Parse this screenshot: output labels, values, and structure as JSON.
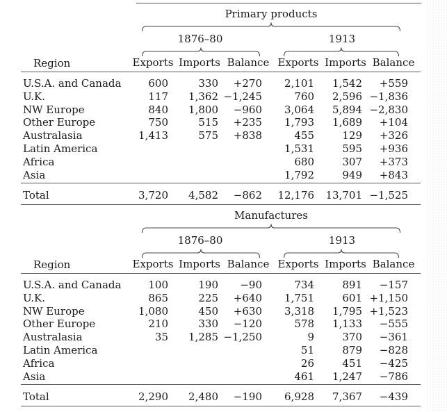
{
  "sections": [
    {
      "title": "Primary products",
      "period1": "1876–80",
      "period2": "1913",
      "region_label": "Region",
      "columns": [
        "Exports",
        "Imports",
        "Balance",
        "Exports",
        "Imports",
        "Balance"
      ],
      "rows": [
        {
          "region": "U.S.A. and Canada",
          "cells": [
            "600",
            "330",
            "+270",
            "2,101",
            "1,542",
            "+559"
          ]
        },
        {
          "region": "U.K.",
          "cells": [
            "117",
            "1,362",
            "−1,245",
            "760",
            "2,596",
            "−1,836"
          ]
        },
        {
          "region": "NW Europe",
          "cells": [
            "840",
            "1,800",
            "−960",
            "3,064",
            "5,894",
            "−2,830"
          ]
        },
        {
          "region": "Other Europe",
          "cells": [
            "750",
            "515",
            "+235",
            "1,793",
            "1,689",
            "+104"
          ]
        },
        {
          "region": "Australasia",
          "cells": [
            "1,413",
            "575",
            "+838",
            "455",
            "129",
            "+326"
          ]
        },
        {
          "region": "Latin America",
          "cells": [
            "",
            "",
            "",
            "1,531",
            "595",
            "+936"
          ]
        },
        {
          "region": "Africa",
          "cells": [
            "",
            "",
            "",
            "680",
            "307",
            "+373"
          ]
        },
        {
          "region": "Asia",
          "cells": [
            "",
            "",
            "",
            "1,792",
            "949",
            "+843"
          ]
        }
      ],
      "total": {
        "region": "Total",
        "cells": [
          "3,720",
          "4,582",
          "−862",
          "12,176",
          "13,701",
          "−1,525"
        ]
      }
    },
    {
      "title": "Manufactures",
      "period1": "1876–80",
      "period2": "1913",
      "region_label": "Region",
      "columns": [
        "Exports",
        "Imports",
        "Balance",
        "Exports",
        "Imports",
        "Balance"
      ],
      "rows": [
        {
          "region": "U.S.A. and Canada",
          "cells": [
            "100",
            "190",
            "−90",
            "734",
            "891",
            "−157"
          ]
        },
        {
          "region": "U.K.",
          "cells": [
            "865",
            "225",
            "+640",
            "1,751",
            "601",
            "+1,150"
          ]
        },
        {
          "region": "NW Europe",
          "cells": [
            "1,080",
            "450",
            "+630",
            "3,318",
            "1,795",
            "+1,523"
          ]
        },
        {
          "region": "Other Europe",
          "cells": [
            "210",
            "330",
            "−120",
            "578",
            "1,133",
            "−555"
          ]
        },
        {
          "region": "Australasia",
          "cells": [
            "35",
            "1,285",
            "−1,250",
            "9",
            "370",
            "−361"
          ]
        },
        {
          "region": "Latin America",
          "cells": [
            "",
            "",
            "",
            "51",
            "879",
            "−828"
          ]
        },
        {
          "region": "Africa",
          "cells": [
            "",
            "",
            "",
            "26",
            "451",
            "−425"
          ]
        },
        {
          "region": "Asia",
          "cells": [
            "",
            "",
            "",
            "461",
            "1,247",
            "−786"
          ]
        }
      ],
      "total": {
        "region": "Total",
        "cells": [
          "2,290",
          "2,480",
          "−190",
          "6,928",
          "7,367",
          "−439"
        ]
      }
    }
  ]
}
